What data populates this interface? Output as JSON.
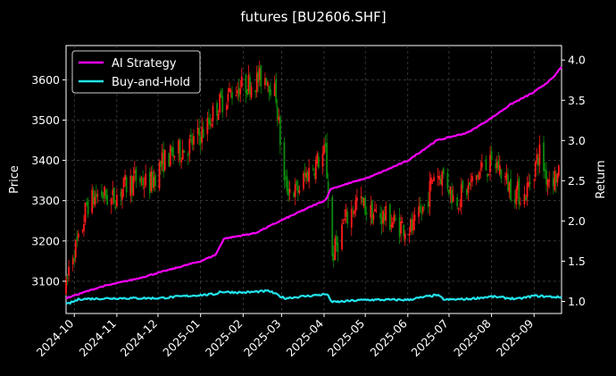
{
  "chart_data": {
    "type": "line",
    "title": "futures [BU2606.SHF]",
    "xlabel": "",
    "ylabel": "Price",
    "y2label": "Return",
    "x_range": [
      "2024-09-25",
      "2025-09-21"
    ],
    "ylim": [
      3020,
      3685
    ],
    "y2lim": [
      0.85,
      4.18
    ],
    "grid": true,
    "legend_placement": "top-left",
    "x_ticks": [
      "2024-10",
      "2024-11",
      "2024-12",
      "2025-01",
      "2025-02",
      "2025-03",
      "2025-04",
      "2025-05",
      "2025-06",
      "2025-07",
      "2025-08",
      "2025-09"
    ],
    "x_tick_dates": [
      "2024-10-01",
      "2024-11-01",
      "2024-12-01",
      "2025-01-01",
      "2025-02-01",
      "2025-03-01",
      "2025-04-01",
      "2025-05-01",
      "2025-06-01",
      "2025-07-01",
      "2025-08-01",
      "2025-09-01"
    ],
    "y_ticks": [
      3100,
      3200,
      3300,
      3400,
      3500,
      3600
    ],
    "y2_ticks": [
      "1.0",
      "1.5",
      "2.0",
      "2.5",
      "3.0",
      "3.5",
      "4.0"
    ],
    "y2_tick_values": [
      1.0,
      1.5,
      2.0,
      2.5,
      3.0,
      3.5,
      4.0
    ],
    "colors": {
      "up": "#ff1a1a",
      "down": "#0a8a0a",
      "strategy": "#ff00ff",
      "buyhold": "#22e5ee",
      "grid": "#555555"
    },
    "price_path": [
      [
        "2024-09-25",
        3080
      ],
      [
        "2024-09-28",
        3160
      ],
      [
        "2024-10-05",
        3200
      ],
      [
        "2024-10-10",
        3290
      ],
      [
        "2024-10-20",
        3320
      ],
      [
        "2024-10-28",
        3300
      ],
      [
        "2024-11-05",
        3330
      ],
      [
        "2024-11-15",
        3355
      ],
      [
        "2024-11-25",
        3340
      ],
      [
        "2024-12-05",
        3400
      ],
      [
        "2024-12-15",
        3420
      ],
      [
        "2024-12-25",
        3440
      ],
      [
        "2025-01-05",
        3480
      ],
      [
        "2025-01-12",
        3530
      ],
      [
        "2025-01-20",
        3560
      ],
      [
        "2025-01-28",
        3580
      ],
      [
        "2025-02-05",
        3590
      ],
      [
        "2025-02-12",
        3600
      ],
      [
        "2025-02-18",
        3610
      ],
      [
        "2025-02-25",
        3560
      ],
      [
        "2025-03-03",
        3340
      ],
      [
        "2025-03-12",
        3320
      ],
      [
        "2025-03-20",
        3370
      ],
      [
        "2025-03-28",
        3400
      ],
      [
        "2025-04-02",
        3420
      ],
      [
        "2025-04-07",
        3160
      ],
      [
        "2025-04-15",
        3240
      ],
      [
        "2025-04-25",
        3300
      ],
      [
        "2025-05-05",
        3270
      ],
      [
        "2025-05-15",
        3260
      ],
      [
        "2025-05-25",
        3240
      ],
      [
        "2025-06-05",
        3230
      ],
      [
        "2025-06-15",
        3300
      ],
      [
        "2025-06-20",
        3370
      ],
      [
        "2025-06-28",
        3360
      ],
      [
        "2025-07-05",
        3300
      ],
      [
        "2025-07-15",
        3330
      ],
      [
        "2025-07-25",
        3380
      ],
      [
        "2025-08-05",
        3390
      ],
      [
        "2025-08-15",
        3330
      ],
      [
        "2025-08-25",
        3310
      ],
      [
        "2025-09-01",
        3380
      ],
      [
        "2025-09-05",
        3420
      ],
      [
        "2025-09-10",
        3360
      ],
      [
        "2025-09-21",
        3360
      ]
    ],
    "series": [
      {
        "name": "AI Strategy",
        "points": [
          [
            "2024-09-25",
            1.04
          ],
          [
            "2024-10-20",
            1.18
          ],
          [
            "2024-11-15",
            1.28
          ],
          [
            "2024-12-15",
            1.42
          ],
          [
            "2025-01-01",
            1.5
          ],
          [
            "2025-01-12",
            1.58
          ],
          [
            "2025-01-18",
            1.78
          ],
          [
            "2025-02-10",
            1.85
          ],
          [
            "2025-02-28",
            2.0
          ],
          [
            "2025-03-15",
            2.12
          ],
          [
            "2025-04-02",
            2.26
          ],
          [
            "2025-04-06",
            2.4
          ],
          [
            "2025-05-05",
            2.55
          ],
          [
            "2025-06-01",
            2.75
          ],
          [
            "2025-06-22",
            3.0
          ],
          [
            "2025-07-15",
            3.1
          ],
          [
            "2025-08-01",
            3.28
          ],
          [
            "2025-08-15",
            3.45
          ],
          [
            "2025-09-01",
            3.6
          ],
          [
            "2025-09-15",
            3.78
          ],
          [
            "2025-09-21",
            3.92
          ]
        ]
      },
      {
        "name": "Buy-and-Hold",
        "points": [
          [
            "2024-09-25",
            0.96
          ],
          [
            "2024-10-05",
            1.03
          ],
          [
            "2024-11-01",
            1.04
          ],
          [
            "2024-12-01",
            1.04
          ],
          [
            "2025-01-01",
            1.08
          ],
          [
            "2025-01-12",
            1.09
          ],
          [
            "2025-01-15",
            1.12
          ],
          [
            "2025-02-01",
            1.11
          ],
          [
            "2025-02-20",
            1.13
          ],
          [
            "2025-03-03",
            1.04
          ],
          [
            "2025-04-03",
            1.09
          ],
          [
            "2025-04-07",
            0.99
          ],
          [
            "2025-05-01",
            1.02
          ],
          [
            "2025-06-01",
            1.02
          ],
          [
            "2025-06-22",
            1.08
          ],
          [
            "2025-06-28",
            1.02
          ],
          [
            "2025-07-15",
            1.03
          ],
          [
            "2025-08-01",
            1.06
          ],
          [
            "2025-08-20",
            1.03
          ],
          [
            "2025-09-01",
            1.07
          ],
          [
            "2025-09-21",
            1.05
          ]
        ]
      }
    ]
  }
}
